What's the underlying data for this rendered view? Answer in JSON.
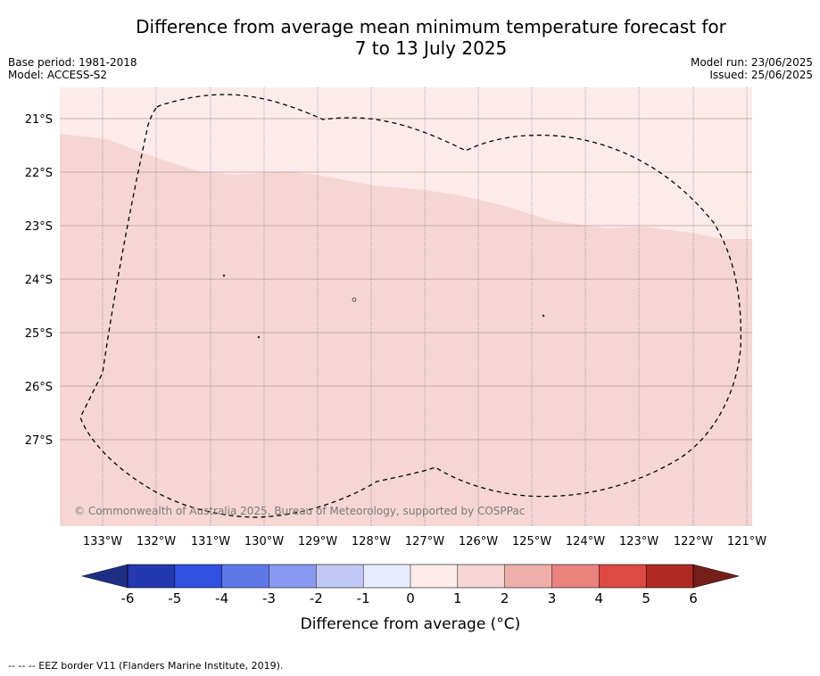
{
  "title": {
    "line1": "Difference from average mean minimum temperature forecast for",
    "line2": "7 to 13 July 2025"
  },
  "meta": {
    "base_period": "Base period: 1981-2018",
    "model": "Model: ACCESS-S2",
    "model_run": "Model run: 23/06/2025",
    "issued": "Issued: 25/06/2025"
  },
  "map": {
    "lat_labels": [
      "21°S",
      "22°S",
      "23°S",
      "24°S",
      "25°S",
      "26°S",
      "27°S"
    ],
    "lon_labels": [
      "133°W",
      "132°W",
      "131°W",
      "130°W",
      "129°W",
      "128°W",
      "127°W",
      "126°W",
      "125°W",
      "124°W",
      "123°W",
      "122°W",
      "121°W"
    ],
    "copyright": "© Commonwealth of Australia 2025, Bureau of Meteorology, supported by COSPPac",
    "colors": {
      "band_0_1": "#fcebea",
      "band_1_2": "#f5d6d4"
    }
  },
  "colorbar": {
    "ticks": [
      "-6",
      "-5",
      "-4",
      "-3",
      "-2",
      "-1",
      "0",
      "1",
      "2",
      "3",
      "4",
      "5",
      "6"
    ],
    "label": "Difference from average (°C)",
    "colors": [
      "#1d2f84",
      "#2438b0",
      "#3050e0",
      "#5f78e8",
      "#8999ef",
      "#c2c9f6",
      "#e8ebfb",
      "#fcebea",
      "#f5d6d4",
      "#eeaeaa",
      "#e8837e",
      "#dd4a43",
      "#ae2a23",
      "#741f1a"
    ]
  },
  "footer": "-- -- -- EEZ border V11 (Flanders Marine Institute, 2019)."
}
